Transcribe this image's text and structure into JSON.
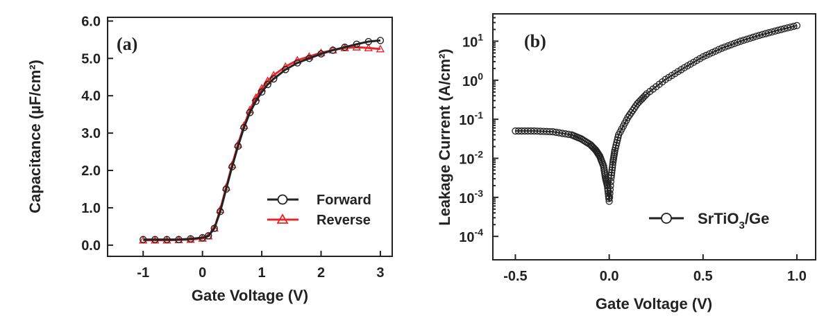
{
  "chart_data": [
    {
      "type": "line",
      "panel_label": "(a)",
      "xlabel": "Gate Voltage (V)",
      "ylabel": "Capacitance (µF/cm²)",
      "xlim": [
        -1.6,
        3.2
      ],
      "ylim": [
        -0.3,
        6.1
      ],
      "xticks": [
        -1,
        0,
        1,
        2,
        3
      ],
      "xtick_labels": [
        "-1",
        "0",
        "1",
        "2",
        "3"
      ],
      "yticks": [
        0,
        1,
        2,
        3,
        4,
        5,
        6
      ],
      "ytick_labels": [
        "0.0",
        "1.0",
        "2.0",
        "3.0",
        "4.0",
        "5.0",
        "6.0"
      ],
      "legend_position": "bottom-right",
      "series": [
        {
          "name": "Forward",
          "color": "#222222",
          "marker": "circle",
          "x": [
            -1.0,
            -0.8,
            -0.6,
            -0.4,
            -0.2,
            0.0,
            0.1,
            0.2,
            0.3,
            0.4,
            0.5,
            0.6,
            0.7,
            0.8,
            0.9,
            1.0,
            1.1,
            1.2,
            1.4,
            1.6,
            1.8,
            2.0,
            2.2,
            2.4,
            2.6,
            2.8,
            3.0
          ],
          "y": [
            0.15,
            0.15,
            0.15,
            0.15,
            0.17,
            0.2,
            0.25,
            0.45,
            0.9,
            1.5,
            2.1,
            2.65,
            3.15,
            3.55,
            3.85,
            4.1,
            4.3,
            4.45,
            4.7,
            4.88,
            5.0,
            5.12,
            5.22,
            5.3,
            5.38,
            5.45,
            5.48
          ]
        },
        {
          "name": "Reverse",
          "color": "#e8262a",
          "marker": "triangle",
          "x": [
            -1.0,
            -0.8,
            -0.6,
            -0.4,
            -0.2,
            0.0,
            0.1,
            0.2,
            0.3,
            0.4,
            0.5,
            0.6,
            0.7,
            0.8,
            0.9,
            1.0,
            1.1,
            1.2,
            1.4,
            1.6,
            1.8,
            2.0,
            2.2,
            2.4,
            2.6,
            2.8,
            3.0
          ],
          "y": [
            0.13,
            0.13,
            0.13,
            0.14,
            0.15,
            0.18,
            0.24,
            0.45,
            0.95,
            1.55,
            2.15,
            2.7,
            3.2,
            3.62,
            3.95,
            4.2,
            4.4,
            4.55,
            4.78,
            4.95,
            5.05,
            5.15,
            5.22,
            5.28,
            5.3,
            5.28,
            5.25
          ]
        }
      ]
    },
    {
      "type": "line",
      "panel_label": "(b)",
      "xlabel": "Gate Voltage (V)",
      "ylabel": "Leakage Current (A/cm²)",
      "yscale": "log",
      "xlim": [
        -0.62,
        1.1
      ],
      "ylim_log10": [
        -4.6,
        1.7
      ],
      "xticks": [
        -0.5,
        0.0,
        0.5,
        1.0
      ],
      "xtick_labels": [
        "-0.5",
        "0.0",
        "0.5",
        "1.0"
      ],
      "yticks_log10": [
        -4,
        -3,
        -2,
        -1,
        0,
        1
      ],
      "ytick_base": "10",
      "ytick_exponents": [
        "-4",
        "-3",
        "-2",
        "-1",
        "0",
        "1"
      ],
      "legend_position": "bottom-right",
      "series": [
        {
          "name": "SrTiO",
          "name_subscript": "3",
          "name_suffix": "/Ge",
          "color": "#222222",
          "marker": "circle",
          "x": [
            -0.5,
            -0.4,
            -0.3,
            -0.2,
            -0.15,
            -0.1,
            -0.07,
            -0.05,
            -0.03,
            -0.02,
            -0.01,
            0.0,
            0.01,
            0.02,
            0.03,
            0.05,
            0.1,
            0.15,
            0.2,
            0.3,
            0.4,
            0.5,
            0.6,
            0.7,
            0.8,
            0.9,
            1.0
          ],
          "y_log10": [
            -1.3,
            -1.3,
            -1.32,
            -1.4,
            -1.5,
            -1.65,
            -1.8,
            -1.95,
            -2.2,
            -2.5,
            -2.7,
            -3.1,
            -2.5,
            -2.1,
            -1.8,
            -1.4,
            -0.95,
            -0.6,
            -0.35,
            0.02,
            0.32,
            0.6,
            0.82,
            1.0,
            1.15,
            1.28,
            1.4
          ]
        }
      ]
    }
  ]
}
